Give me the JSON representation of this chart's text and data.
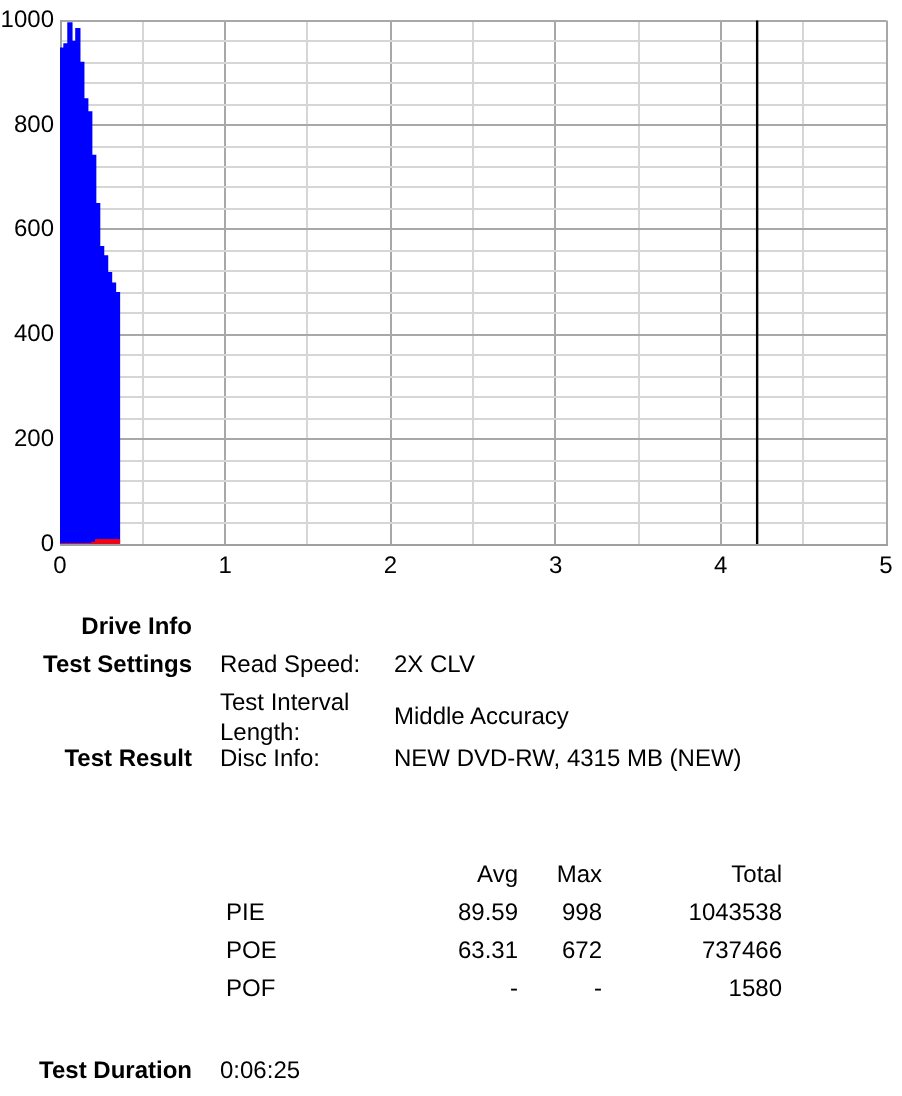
{
  "chart_data": [
    {
      "type": "histogram",
      "bins": [
        0,
        0.024,
        0.048,
        0.072,
        0.096,
        0.12,
        0.144,
        0.168,
        0.192,
        0.216,
        0.24,
        0.264,
        0.288,
        0.312,
        0.336,
        0.36
      ],
      "series": [
        {
          "color": "#0000ff",
          "values": [
            947,
            955,
            995,
            960,
            984,
            920,
            850,
            825,
            742,
            650,
            568,
            550,
            518,
            498,
            480
          ]
        },
        {
          "color": "#ff0000",
          "values": [
            0,
            0,
            0,
            0,
            0,
            0,
            0,
            0,
            3,
            8,
            8,
            8,
            8,
            8,
            8
          ]
        }
      ],
      "xlim": [
        0,
        5
      ],
      "xticks": [
        0,
        {
          "value": 0.5,
          "label": null
        },
        1,
        {
          "value": 1.5,
          "label": null
        },
        2,
        {
          "value": 2.5,
          "label": null
        },
        3,
        {
          "value": 3.5,
          "label": null
        },
        4,
        {
          "value": 4.5,
          "label": null
        },
        5
      ],
      "ylim": [
        0,
        1000
      ],
      "yticks": [
        0,
        {
          "value": 40,
          "label": null
        },
        {
          "value": 80,
          "label": null
        },
        {
          "value": 120,
          "label": null
        },
        {
          "value": 160,
          "label": null
        },
        200,
        {
          "value": 240,
          "label": null
        },
        {
          "value": 280,
          "label": null
        },
        {
          "value": 320,
          "label": null
        },
        {
          "value": 360,
          "label": null
        },
        400,
        {
          "value": 440,
          "label": null
        },
        {
          "value": 480,
          "label": null
        },
        {
          "value": 520,
          "label": null
        },
        {
          "value": 560,
          "label": null
        },
        600,
        {
          "value": 640,
          "label": null
        },
        {
          "value": 680,
          "label": null
        },
        {
          "value": 720,
          "label": null
        },
        {
          "value": 760,
          "label": null
        },
        800,
        {
          "value": 840,
          "label": null
        },
        {
          "value": 880,
          "label": null
        },
        {
          "value": 920,
          "label": null
        },
        {
          "value": 960,
          "label": null
        },
        1000
      ],
      "grid": true,
      "ref_lines": [
        {
          "axis": "x",
          "value": 4.22,
          "color": "#000000"
        }
      ]
    },
    {
      "type": "other",
      "annotations": [
        "Drive Info",
        "Test Settings",
        "Read Speed:",
        "2X CLV",
        "Test Interval Length:",
        "Middle Accuracy",
        "Test Result",
        "Disc Info:",
        "NEW DVD-RW, 4315 MB (NEW)",
        "Avg",
        "Max",
        "Total",
        "PIE",
        "89.59",
        "998",
        "1043538",
        "POE",
        "63.31",
        "672",
        "737466",
        "POF",
        "-",
        "-",
        "1580",
        "Test Duration",
        "0:06:25"
      ]
    }
  ]
}
